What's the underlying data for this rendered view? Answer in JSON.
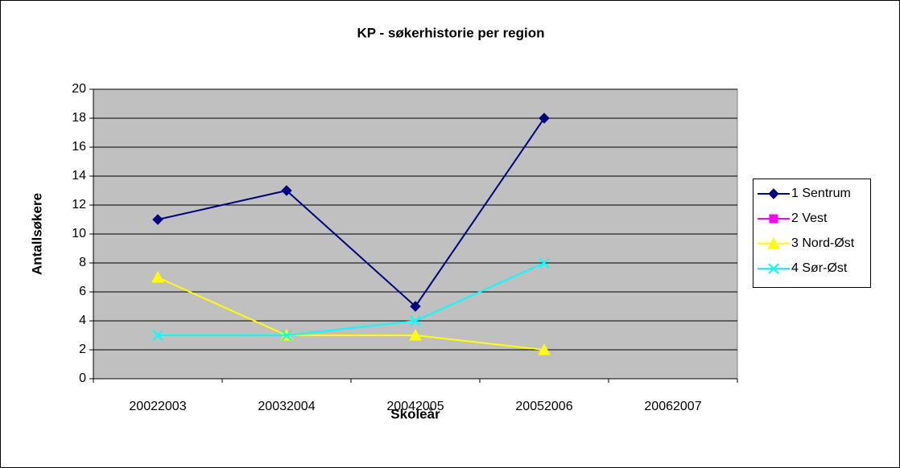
{
  "chart_data": {
    "type": "line",
    "title": "KP - søkerhistorie per region",
    "x_label": "Skoleår",
    "y_label": "Antallsøkere",
    "categories": [
      "20022003",
      "20032004",
      "20042005",
      "20052006",
      "20062007"
    ],
    "series": [
      {
        "name": "1 Sentrum",
        "color": "#000080",
        "marker": "diamond",
        "values": [
          11,
          13,
          5,
          18,
          null
        ]
      },
      {
        "name": "2 Vest",
        "color": "#ff00ff",
        "marker": "square",
        "values": [
          null,
          null,
          null,
          null,
          null
        ]
      },
      {
        "name": "3 Nord-Øst",
        "color": "#ffff00",
        "marker": "triangle",
        "values": [
          7,
          3,
          3,
          2,
          null
        ]
      },
      {
        "name": "4 Sør-Øst",
        "color": "#00ffff",
        "marker": "x",
        "values": [
          3,
          3,
          4,
          8,
          null
        ]
      }
    ],
    "ylim": [
      0,
      20
    ],
    "yticks": [
      0,
      2,
      4,
      6,
      8,
      10,
      12,
      14,
      16,
      18,
      20
    ],
    "grid": true,
    "legend": "right"
  }
}
